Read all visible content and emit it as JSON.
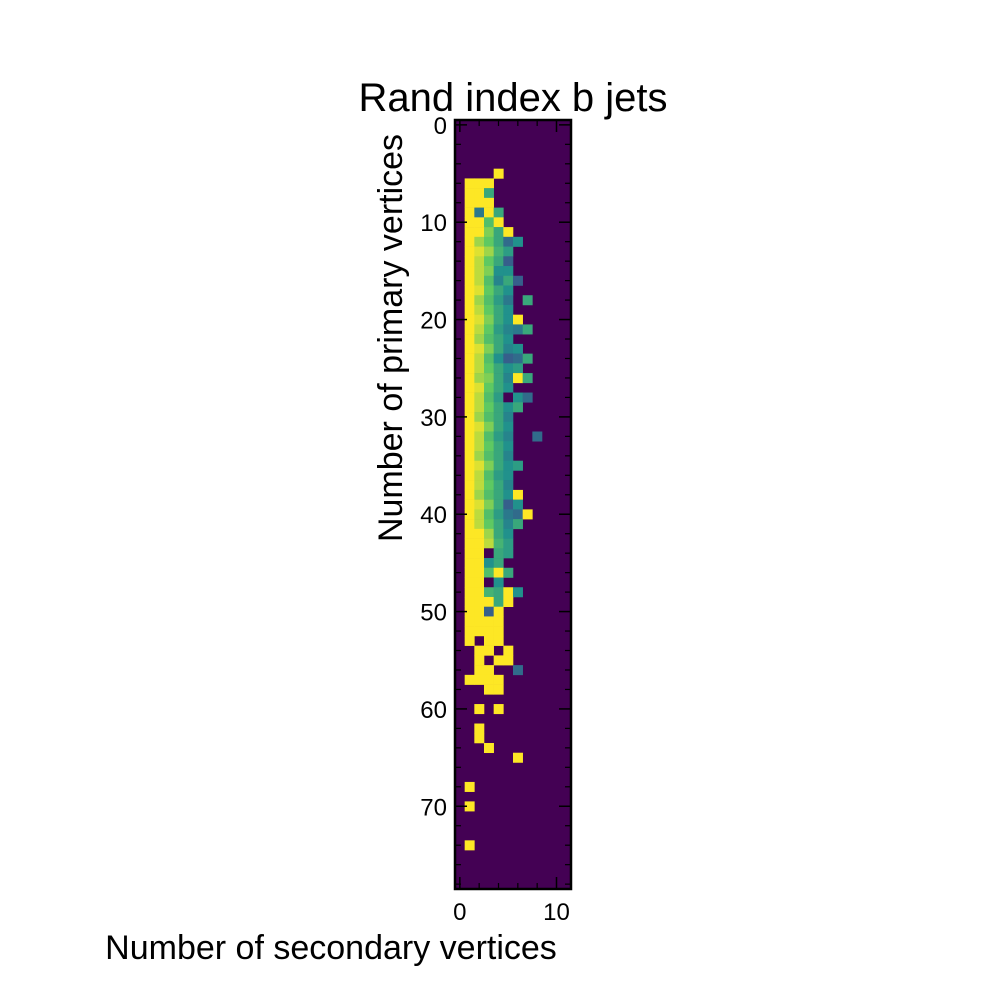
{
  "chart_data": {
    "type": "heatmap",
    "title": "Rand index b jets",
    "xlabel": "Number of secondary vertices",
    "ylabel": "Number of primary vertices",
    "x_extent": [
      -0.5,
      11.5
    ],
    "y_extent": [
      -0.5,
      78.5
    ],
    "y_inverted": true,
    "xticks": [
      0,
      10
    ],
    "yticks": [
      0,
      10,
      20,
      30,
      40,
      50,
      60,
      70
    ],
    "grid": false,
    "colormap": "viridis",
    "value_range": [
      0,
      1
    ],
    "background_value": 0,
    "cells": [
      [
        4,
        5,
        1.0
      ],
      [
        1,
        6,
        1.0
      ],
      [
        2,
        6,
        1.0
      ],
      [
        3,
        6,
        1.0
      ],
      [
        1,
        7,
        1.0
      ],
      [
        2,
        7,
        1.0
      ],
      [
        3,
        7,
        0.6
      ],
      [
        1,
        8,
        1.0
      ],
      [
        2,
        8,
        1.0
      ],
      [
        3,
        8,
        1.0
      ],
      [
        1,
        9,
        1.0
      ],
      [
        2,
        9,
        0.4
      ],
      [
        3,
        9,
        1.0
      ],
      [
        4,
        9,
        0.6
      ],
      [
        1,
        10,
        1.0
      ],
      [
        2,
        10,
        1.0
      ],
      [
        3,
        10,
        0.7
      ],
      [
        4,
        10,
        1.0
      ],
      [
        1,
        11,
        1.0
      ],
      [
        2,
        11,
        1.0
      ],
      [
        3,
        11,
        0.8
      ],
      [
        4,
        11,
        0.6
      ],
      [
        5,
        11,
        1.0
      ],
      [
        1,
        12,
        1.0
      ],
      [
        2,
        12,
        0.85
      ],
      [
        3,
        12,
        0.75
      ],
      [
        4,
        12,
        0.6
      ],
      [
        5,
        12,
        0.35
      ],
      [
        6,
        12,
        0.5
      ],
      [
        1,
        13,
        1.0
      ],
      [
        2,
        13,
        0.95
      ],
      [
        3,
        13,
        0.85
      ],
      [
        4,
        13,
        0.65
      ],
      [
        5,
        13,
        0.55
      ],
      [
        1,
        14,
        1.0
      ],
      [
        2,
        14,
        0.9
      ],
      [
        3,
        14,
        0.75
      ],
      [
        4,
        14,
        0.6
      ],
      [
        5,
        14,
        0.3
      ],
      [
        1,
        15,
        1.0
      ],
      [
        2,
        15,
        0.9
      ],
      [
        3,
        15,
        0.8
      ],
      [
        4,
        15,
        0.5
      ],
      [
        5,
        15,
        0.5
      ],
      [
        1,
        16,
        1.0
      ],
      [
        2,
        16,
        0.9
      ],
      [
        3,
        16,
        0.7
      ],
      [
        4,
        16,
        0.45
      ],
      [
        5,
        16,
        0.6
      ],
      [
        6,
        16,
        0.3
      ],
      [
        1,
        17,
        1.0
      ],
      [
        2,
        17,
        0.95
      ],
      [
        3,
        17,
        0.75
      ],
      [
        4,
        17,
        0.6
      ],
      [
        5,
        17,
        0.5
      ],
      [
        1,
        18,
        1.0
      ],
      [
        2,
        18,
        0.85
      ],
      [
        3,
        18,
        0.7
      ],
      [
        4,
        18,
        0.55
      ],
      [
        5,
        18,
        0.4
      ],
      [
        7,
        18,
        0.6
      ],
      [
        1,
        19,
        1.0
      ],
      [
        2,
        19,
        0.9
      ],
      [
        3,
        19,
        0.75
      ],
      [
        4,
        19,
        0.6
      ],
      [
        5,
        19,
        0.5
      ],
      [
        1,
        20,
        1.0
      ],
      [
        2,
        20,
        0.95
      ],
      [
        3,
        20,
        0.8
      ],
      [
        4,
        20,
        0.6
      ],
      [
        5,
        20,
        0.5
      ],
      [
        6,
        20,
        1.0
      ],
      [
        1,
        21,
        1.0
      ],
      [
        2,
        21,
        0.9
      ],
      [
        3,
        21,
        0.75
      ],
      [
        4,
        21,
        0.55
      ],
      [
        5,
        21,
        0.45
      ],
      [
        6,
        21,
        0.4
      ],
      [
        7,
        21,
        0.6
      ],
      [
        1,
        22,
        1.0
      ],
      [
        2,
        22,
        0.85
      ],
      [
        3,
        22,
        0.7
      ],
      [
        4,
        22,
        0.6
      ],
      [
        5,
        22,
        0.5
      ],
      [
        1,
        23,
        1.0
      ],
      [
        2,
        23,
        0.95
      ],
      [
        3,
        23,
        0.8
      ],
      [
        4,
        23,
        0.6
      ],
      [
        5,
        23,
        0.45
      ],
      [
        6,
        23,
        0.5
      ],
      [
        1,
        24,
        1.0
      ],
      [
        2,
        24,
        0.9
      ],
      [
        3,
        24,
        0.7
      ],
      [
        4,
        24,
        0.5
      ],
      [
        5,
        24,
        0.3
      ],
      [
        6,
        24,
        0.35
      ],
      [
        7,
        24,
        0.6
      ],
      [
        1,
        25,
        1.0
      ],
      [
        2,
        25,
        0.9
      ],
      [
        3,
        25,
        0.75
      ],
      [
        4,
        25,
        0.6
      ],
      [
        5,
        25,
        0.5
      ],
      [
        6,
        25,
        0.55
      ],
      [
        1,
        26,
        1.0
      ],
      [
        2,
        26,
        0.85
      ],
      [
        3,
        26,
        0.8
      ],
      [
        4,
        26,
        0.6
      ],
      [
        5,
        26,
        0.45
      ],
      [
        6,
        26,
        1.0
      ],
      [
        7,
        26,
        0.6
      ],
      [
        1,
        27,
        1.0
      ],
      [
        2,
        27,
        0.95
      ],
      [
        3,
        27,
        0.75
      ],
      [
        4,
        27,
        0.6
      ],
      [
        5,
        27,
        0.5
      ],
      [
        1,
        28,
        1.0
      ],
      [
        2,
        28,
        0.9
      ],
      [
        3,
        28,
        0.7
      ],
      [
        4,
        28,
        0.55
      ],
      [
        5,
        28,
        0.0
      ],
      [
        6,
        28,
        0.5
      ],
      [
        7,
        28,
        0.35
      ],
      [
        1,
        29,
        1.0
      ],
      [
        2,
        29,
        0.9
      ],
      [
        3,
        29,
        0.75
      ],
      [
        4,
        29,
        0.6
      ],
      [
        5,
        29,
        0.5
      ],
      [
        6,
        29,
        0.6
      ],
      [
        1,
        30,
        1.0
      ],
      [
        2,
        30,
        0.85
      ],
      [
        3,
        30,
        0.7
      ],
      [
        4,
        30,
        0.6
      ],
      [
        5,
        30,
        0.45
      ],
      [
        1,
        31,
        1.0
      ],
      [
        2,
        31,
        0.95
      ],
      [
        3,
        31,
        0.8
      ],
      [
        4,
        31,
        0.6
      ],
      [
        5,
        31,
        0.5
      ],
      [
        1,
        32,
        1.0
      ],
      [
        2,
        32,
        0.9
      ],
      [
        3,
        32,
        0.7
      ],
      [
        4,
        32,
        0.55
      ],
      [
        5,
        32,
        0.45
      ],
      [
        8,
        32,
        0.35
      ],
      [
        1,
        33,
        1.0
      ],
      [
        2,
        33,
        0.9
      ],
      [
        3,
        33,
        0.75
      ],
      [
        4,
        33,
        0.6
      ],
      [
        5,
        33,
        0.5
      ],
      [
        1,
        34,
        1.0
      ],
      [
        2,
        34,
        0.85
      ],
      [
        3,
        34,
        0.7
      ],
      [
        4,
        34,
        0.6
      ],
      [
        5,
        34,
        0.45
      ],
      [
        1,
        35,
        1.0
      ],
      [
        2,
        35,
        0.95
      ],
      [
        3,
        35,
        0.8
      ],
      [
        4,
        35,
        0.6
      ],
      [
        5,
        35,
        0.5
      ],
      [
        6,
        35,
        0.55
      ],
      [
        1,
        36,
        1.0
      ],
      [
        2,
        36,
        0.9
      ],
      [
        3,
        36,
        0.7
      ],
      [
        4,
        36,
        0.55
      ],
      [
        5,
        36,
        0.5
      ],
      [
        1,
        37,
        1.0
      ],
      [
        2,
        37,
        0.9
      ],
      [
        3,
        37,
        0.75
      ],
      [
        4,
        37,
        0.6
      ],
      [
        5,
        37,
        0.45
      ],
      [
        1,
        38,
        1.0
      ],
      [
        2,
        38,
        0.85
      ],
      [
        3,
        38,
        0.7
      ],
      [
        4,
        38,
        0.6
      ],
      [
        5,
        38,
        0.5
      ],
      [
        6,
        38,
        1.0
      ],
      [
        1,
        39,
        1.0
      ],
      [
        2,
        39,
        0.95
      ],
      [
        3,
        39,
        0.8
      ],
      [
        4,
        39,
        0.6
      ],
      [
        5,
        39,
        0.3
      ],
      [
        6,
        39,
        0.5
      ],
      [
        1,
        40,
        1.0
      ],
      [
        2,
        40,
        0.9
      ],
      [
        3,
        40,
        0.7
      ],
      [
        4,
        40,
        0.55
      ],
      [
        5,
        40,
        0.4
      ],
      [
        6,
        40,
        0.35
      ],
      [
        7,
        40,
        1.0
      ],
      [
        1,
        41,
        1.0
      ],
      [
        2,
        41,
        0.9
      ],
      [
        3,
        41,
        0.75
      ],
      [
        4,
        41,
        0.6
      ],
      [
        5,
        41,
        0.45
      ],
      [
        6,
        41,
        0.6
      ],
      [
        1,
        42,
        1.0
      ],
      [
        2,
        42,
        1.0
      ],
      [
        3,
        42,
        0.85
      ],
      [
        4,
        42,
        0.6
      ],
      [
        5,
        42,
        0.5
      ],
      [
        1,
        43,
        1.0
      ],
      [
        2,
        43,
        1.0
      ],
      [
        3,
        43,
        0.9
      ],
      [
        4,
        43,
        0.65
      ],
      [
        5,
        43,
        0.55
      ],
      [
        1,
        44,
        1.0
      ],
      [
        2,
        44,
        1.0
      ],
      [
        3,
        44,
        0.0
      ],
      [
        4,
        44,
        0.6
      ],
      [
        5,
        44,
        0.55
      ],
      [
        1,
        45,
        1.0
      ],
      [
        2,
        45,
        1.0
      ],
      [
        3,
        45,
        0.5
      ],
      [
        4,
        45,
        0.6
      ],
      [
        1,
        46,
        1.0
      ],
      [
        2,
        46,
        1.0
      ],
      [
        3,
        46,
        0.7
      ],
      [
        4,
        46,
        1.0
      ],
      [
        5,
        46,
        0.6
      ],
      [
        1,
        47,
        1.0
      ],
      [
        2,
        47,
        1.0
      ],
      [
        3,
        47,
        0.0
      ],
      [
        4,
        47,
        0.5
      ],
      [
        1,
        48,
        1.0
      ],
      [
        2,
        48,
        1.0
      ],
      [
        3,
        48,
        0.65
      ],
      [
        4,
        48,
        0.6
      ],
      [
        5,
        48,
        1.0
      ],
      [
        6,
        48,
        0.5
      ],
      [
        1,
        49,
        1.0
      ],
      [
        2,
        49,
        1.0
      ],
      [
        3,
        49,
        1.0
      ],
      [
        4,
        49,
        0.6
      ],
      [
        5,
        49,
        1.0
      ],
      [
        1,
        50,
        1.0
      ],
      [
        2,
        50,
        1.0
      ],
      [
        3,
        50,
        0.3
      ],
      [
        4,
        50,
        1.0
      ],
      [
        1,
        51,
        1.0
      ],
      [
        2,
        51,
        1.0
      ],
      [
        3,
        51,
        1.0
      ],
      [
        4,
        51,
        1.0
      ],
      [
        1,
        52,
        1.0
      ],
      [
        2,
        52,
        1.0
      ],
      [
        3,
        52,
        1.0
      ],
      [
        4,
        52,
        1.0
      ],
      [
        1,
        53,
        1.0
      ],
      [
        3,
        53,
        1.0
      ],
      [
        4,
        53,
        1.0
      ],
      [
        2,
        54,
        1.0
      ],
      [
        3,
        54,
        1.0
      ],
      [
        5,
        54,
        1.0
      ],
      [
        2,
        55,
        1.0
      ],
      [
        4,
        55,
        1.0
      ],
      [
        5,
        55,
        1.0
      ],
      [
        2,
        56,
        1.0
      ],
      [
        3,
        56,
        1.0
      ],
      [
        6,
        56,
        0.35
      ],
      [
        1,
        57,
        1.0
      ],
      [
        2,
        57,
        1.0
      ],
      [
        3,
        57,
        1.0
      ],
      [
        4,
        57,
        1.0
      ],
      [
        3,
        58,
        1.0
      ],
      [
        4,
        58,
        1.0
      ],
      [
        2,
        60,
        1.0
      ],
      [
        4,
        60,
        1.0
      ],
      [
        2,
        62,
        1.0
      ],
      [
        2,
        63,
        1.0
      ],
      [
        3,
        64,
        1.0
      ],
      [
        6,
        65,
        1.0
      ],
      [
        1,
        68,
        1.0
      ],
      [
        1,
        70,
        1.0
      ],
      [
        1,
        74,
        1.0
      ]
    ]
  }
}
